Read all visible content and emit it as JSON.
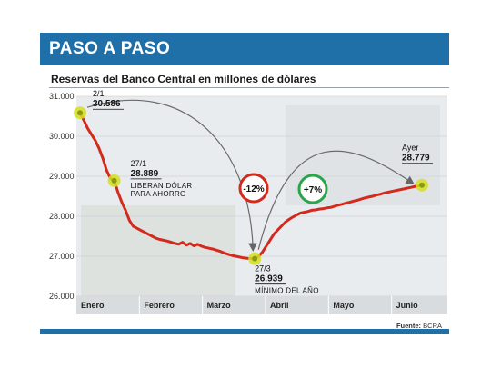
{
  "header": {
    "title": "PASO A PASO"
  },
  "source": {
    "label": "Fuente:",
    "value": "BCRA"
  },
  "colors": {
    "header_bg": "#1f6fa8",
    "line": "#d32a1e",
    "marker": "#d4e021",
    "badge_down": "#d32a1e",
    "badge_up": "#2aa64a"
  },
  "chart_data": {
    "type": "line",
    "title": "Reservas del Banco Central en millones de dólares",
    "ylim": [
      26000,
      31000
    ],
    "yticks": [
      "31.000",
      "30.000",
      "29.000",
      "28.000",
      "27.000",
      "26.000"
    ],
    "ytick_values": [
      31000,
      30000,
      29000,
      28000,
      27000,
      26000
    ],
    "xtick_labels": [
      "Enero",
      "Febrero",
      "Marzo",
      "Abril",
      "Mayo",
      "Junio"
    ],
    "series": [
      {
        "values": [
          30586,
          30400,
          30200,
          30050,
          29900,
          29700,
          29450,
          29150,
          28950,
          28889,
          28600,
          28350,
          28150,
          27900,
          27750,
          27700,
          27650,
          27600,
          27550,
          27500,
          27450,
          27420,
          27400,
          27380,
          27350,
          27320,
          27300,
          27350,
          27280,
          27320,
          27260,
          27300,
          27250,
          27220,
          27200,
          27180,
          27150,
          27120,
          27080,
          27050,
          27020,
          27000,
          26980,
          26960,
          26950,
          26945,
          26939,
          27000,
          27100,
          27250,
          27400,
          27550,
          27650,
          27750,
          27850,
          27920,
          27980,
          28030,
          28080,
          28100,
          28120,
          28150,
          28160,
          28180,
          28190,
          28210,
          28220,
          28250,
          28280,
          28300,
          28330,
          28350,
          28380,
          28400,
          28430,
          28460,
          28480,
          28500,
          28530,
          28550,
          28580,
          28600,
          28620,
          28640,
          28660,
          28680,
          28700,
          28720,
          28740,
          28760,
          28779
        ]
      }
    ],
    "annotations": [
      {
        "date": "2/1",
        "value": "30.586",
        "note": "",
        "index": 0,
        "y": 30586
      },
      {
        "date": "27/1",
        "value": "28.889",
        "note": "LIBERAN DÓLAR PARA AHORRO",
        "note_lines": [
          "LIBERAN DÓLAR",
          "PARA AHORRO"
        ],
        "index": 9,
        "y": 28889
      },
      {
        "date": "27/3",
        "value": "26.939",
        "note": "MÍNIMO DEL AÑO",
        "note_lines": [
          "MÍNIMO DEL AÑO"
        ],
        "index": 46,
        "y": 26939
      },
      {
        "date": "Ayer",
        "value": "28.779",
        "note": "",
        "index": 90,
        "y": 28779
      }
    ],
    "badges": [
      {
        "label": "-12%"
      },
      {
        "label": "+7%"
      }
    ]
  }
}
